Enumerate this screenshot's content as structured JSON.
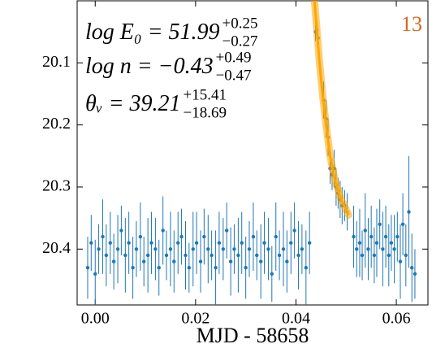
{
  "chart_data": {
    "type": "scatter",
    "xlabel": "MJD - 58658",
    "panel_label": "13",
    "panel_label_color": "#d2691e",
    "annotations": [
      {
        "text": "log E₀ = 51.99",
        "upper": "+0.25",
        "lower": "−0.27"
      },
      {
        "text": "log n = −0.43",
        "upper": "+0.49",
        "lower": "−0.47"
      },
      {
        "text": "θᵥ = 39.21",
        "upper": "+15.41",
        "lower": "−18.69"
      }
    ],
    "xlim": [
      -0.0036,
      0.0663
    ],
    "ylim": [
      20.49,
      20.0
    ],
    "xticks": [
      {
        "value": 0,
        "label": "0.00"
      },
      {
        "value": 0.02,
        "label": "0.02"
      },
      {
        "value": 0.04,
        "label": "0.04"
      },
      {
        "value": 0.06,
        "label": "0.06"
      }
    ],
    "yticks": [
      20.1,
      20.2,
      20.3,
      20.4
    ],
    "series": [
      {
        "color": "#1f77b4",
        "x": [
          -0.0015,
          -0.0008,
          0.0,
          0.0007,
          0.0015,
          0.0022,
          0.003,
          0.0037,
          0.0045,
          0.0052,
          0.006,
          0.0067,
          0.0075,
          0.0082,
          0.009,
          0.0097,
          0.0105,
          0.0112,
          0.012,
          0.0127,
          0.0135,
          0.0142,
          0.015,
          0.0157,
          0.0165,
          0.0172,
          0.018,
          0.0187,
          0.0195,
          0.0202,
          0.021,
          0.0217,
          0.0225,
          0.0232,
          0.024,
          0.0247,
          0.0255,
          0.0262,
          0.027,
          0.0277,
          0.0285,
          0.0292,
          0.03,
          0.0307,
          0.0315,
          0.0322,
          0.033,
          0.0337,
          0.0345,
          0.0352,
          0.036,
          0.0367,
          0.0375,
          0.0382,
          0.039,
          0.0397,
          0.0405,
          0.0412,
          0.042,
          0.0427,
          0.0439,
          0.0444,
          0.0455,
          0.046,
          0.0464,
          0.0468,
          0.0472,
          0.0476,
          0.048,
          0.0484,
          0.0488,
          0.0492,
          0.0497,
          0.0502,
          0.0515,
          0.0521,
          0.0527,
          0.0532,
          0.0538,
          0.0544,
          0.055,
          0.0556,
          0.0561,
          0.0567,
          0.0573,
          0.0579,
          0.0585,
          0.059,
          0.0596,
          0.0602,
          0.0608,
          0.0613,
          0.0619,
          0.0625,
          0.0631,
          0.0637
        ],
        "values": [
          20.43,
          20.39,
          20.44,
          20.4,
          20.38,
          20.41,
          20.39,
          20.42,
          20.4,
          20.37,
          20.41,
          20.39,
          20.43,
          20.4,
          20.38,
          20.42,
          20.41,
          20.39,
          20.4,
          20.43,
          20.37,
          20.41,
          20.4,
          20.42,
          20.39,
          20.38,
          20.41,
          20.43,
          20.4,
          20.39,
          20.42,
          20.38,
          20.4,
          20.41,
          20.43,
          20.39,
          20.4,
          20.37,
          20.42,
          20.4,
          20.41,
          20.39,
          20.43,
          20.4,
          20.38,
          20.41,
          20.42,
          20.39,
          20.4,
          20.44,
          20.38,
          20.41,
          20.4,
          20.42,
          20.39,
          20.37,
          20.41,
          20.4,
          20.43,
          20.39,
          20.05,
          20.06,
          20.16,
          20.19,
          20.22,
          20.27,
          20.28,
          20.27,
          20.3,
          20.31,
          20.32,
          20.33,
          20.33,
          20.34,
          20.38,
          20.4,
          20.39,
          20.41,
          20.37,
          20.4,
          20.38,
          20.41,
          20.39,
          20.36,
          20.4,
          20.38,
          20.41,
          20.39,
          20.4,
          20.38,
          20.42,
          20.36,
          20.41,
          20.34,
          20.43,
          20.44
        ],
        "errors": [
          0.05,
          0.045,
          0.055,
          0.04,
          0.06,
          0.05,
          0.05,
          0.045,
          0.055,
          0.04,
          0.06,
          0.05,
          0.05,
          0.045,
          0.055,
          0.04,
          0.06,
          0.05,
          0.05,
          0.045,
          0.055,
          0.04,
          0.06,
          0.05,
          0.05,
          0.045,
          0.055,
          0.04,
          0.06,
          0.05,
          0.05,
          0.045,
          0.055,
          0.04,
          0.06,
          0.05,
          0.05,
          0.045,
          0.055,
          0.04,
          0.06,
          0.05,
          0.05,
          0.045,
          0.055,
          0.04,
          0.06,
          0.05,
          0.05,
          0.045,
          0.055,
          0.04,
          0.06,
          0.05,
          0.05,
          0.045,
          0.055,
          0.04,
          0.06,
          0.05,
          0.015,
          0.015,
          0.03,
          0.03,
          0.03,
          0.025,
          0.025,
          0.03,
          0.03,
          0.025,
          0.03,
          0.03,
          0.025,
          0.03,
          0.05,
          0.045,
          0.055,
          0.04,
          0.06,
          0.05,
          0.05,
          0.045,
          0.055,
          0.04,
          0.06,
          0.05,
          0.05,
          0.045,
          0.055,
          0.04,
          0.06,
          0.05,
          0.05,
          0.09,
          0.055,
          0.04
        ]
      },
      {
        "type": "line",
        "color": "#ffa500",
        "x": [
          0.0437,
          0.0442,
          0.0447,
          0.0453,
          0.046,
          0.0468,
          0.0478,
          0.049,
          0.0505
        ],
        "values": [
          20.0,
          20.05,
          20.1,
          20.15,
          20.2,
          20.25,
          20.29,
          20.32,
          20.345
        ]
      }
    ]
  }
}
